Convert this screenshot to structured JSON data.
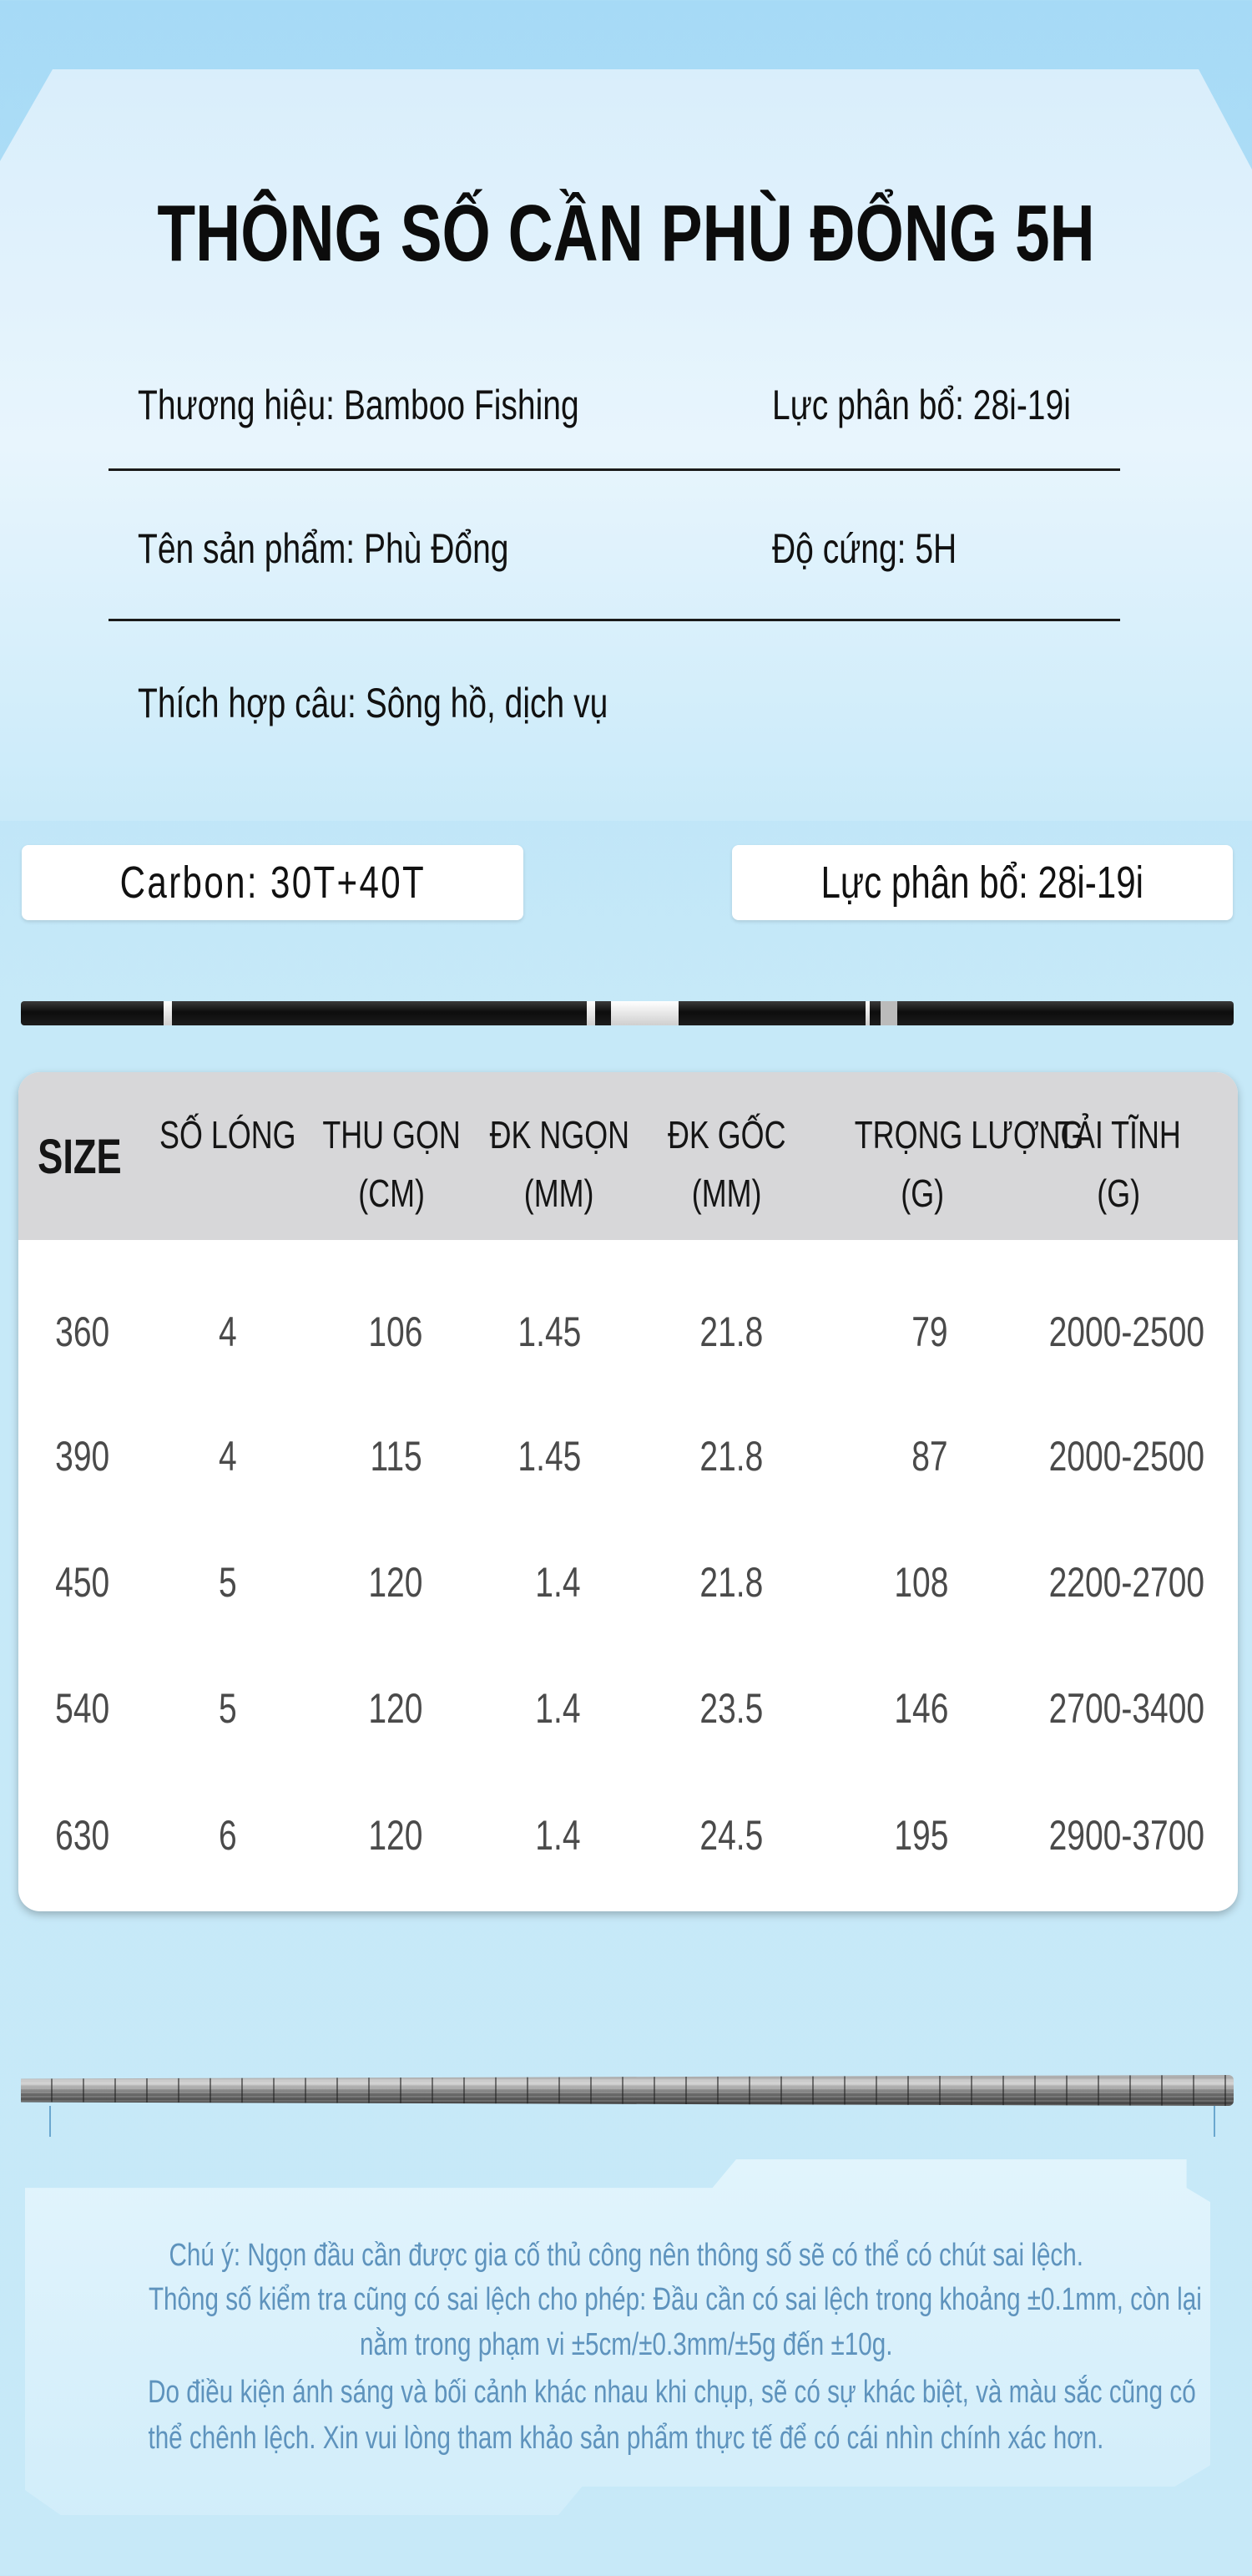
{
  "title": "THÔNG SỐ CẦN PHÙ ĐỔNG 5H",
  "specs": {
    "brand": "Thương hiệu: Bamboo Fishing",
    "force": "Lực phân bổ: 28i-19i",
    "product": "Tên sản phẩm: Phù Đổng",
    "hardness": "Độ cứng: 5H",
    "suitable": "Thích hợp câu:  Sông hồ, dịch vụ"
  },
  "pills": {
    "carbon": "Carbon: 30T+40T",
    "force": "Lực phân bổ: 28i-19i"
  },
  "table": {
    "headers": [
      {
        "l1": "SIZE",
        "l2": ""
      },
      {
        "l1": "SỐ LÓNG",
        "l2": ""
      },
      {
        "l1": "THU GỌN",
        "l2": "(CM)"
      },
      {
        "l1": "ĐK NGỌN",
        "l2": "(MM)"
      },
      {
        "l1": "ĐK GỐC",
        "l2": "(MM)"
      },
      {
        "l1": "TRỌNG LƯỢNG",
        "l2": "(G)"
      },
      {
        "l1": "TẢI TĨNH",
        "l2": "(G)"
      }
    ],
    "rows": [
      [
        "360",
        "4",
        "106",
        "1.45",
        "21.8",
        "79",
        "2000-2500"
      ],
      [
        "390",
        "4",
        "115",
        "1.45",
        "21.8",
        "87",
        "2000-2500"
      ],
      [
        "450",
        "5",
        "120",
        "1.4",
        "21.8",
        "108",
        "2200-2700"
      ],
      [
        "540",
        "5",
        "120",
        "1.4",
        "23.5",
        "146",
        "2700-3400"
      ],
      [
        "630",
        "6",
        "120",
        "1.4",
        "24.5",
        "195",
        "2900-3700"
      ]
    ]
  },
  "note_lines": [
    "Chú ý: Ngọn đầu cần được gia cố thủ công nên thông số sẽ có thể có chút sai lệch.",
    "Thông số kiểm tra cũng có sai lệch cho phép: Đầu cần có sai lệch trong khoảng ±0.1mm, còn lại",
    "nằm trong phạm vi ±5cm/±0.3mm/±5g đến ±10g.",
    "Do điều kiện ánh sáng và bối cảnh khác nhau khi chụp, sẽ có sự khác biệt, và màu sắc cũng có",
    "thể chênh lệch. Xin vui lòng tham khảo sản phẩm thực tế để có cái nhìn chính xác hơn."
  ],
  "colors": {
    "note_text": "#5e93bd",
    "header_bg": "#d7d7d9",
    "background": "#c6e9f8"
  }
}
